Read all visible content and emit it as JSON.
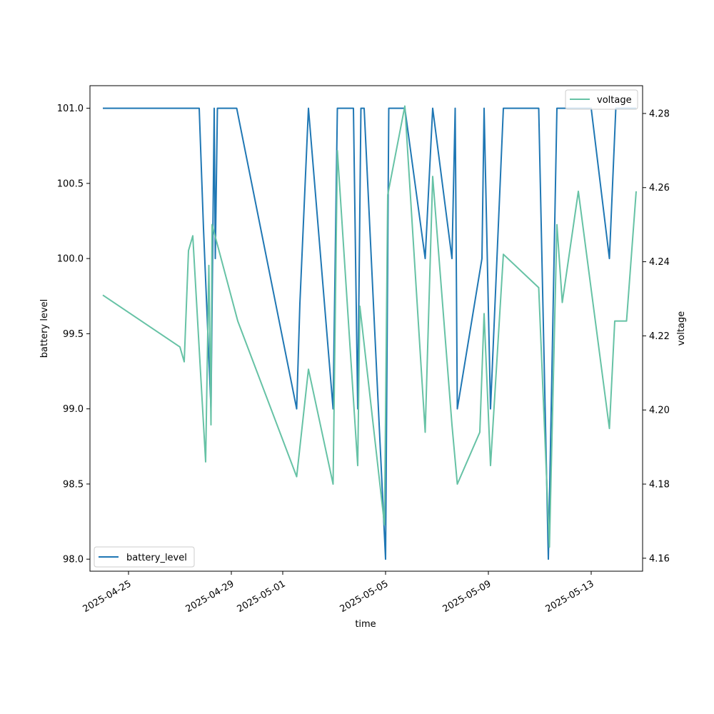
{
  "chart_data": {
    "type": "line",
    "title": "",
    "xlabel": "time",
    "ylabel_left": "battery level",
    "ylabel_right": "voltage",
    "x_ticks": [
      "2025-04-25",
      "2025-04-29",
      "2025-05-01",
      "2025-05-05",
      "2025-05-09",
      "2025-05-13"
    ],
    "y_left_ticks": [
      "98.0",
      "98.5",
      "99.0",
      "99.5",
      "100.0",
      "100.5",
      "101.0"
    ],
    "y_right_ticks": [
      "4.16",
      "4.18",
      "4.20",
      "4.22",
      "4.24",
      "4.26",
      "4.28"
    ],
    "y_left_lim": [
      97.92,
      101.15
    ],
    "y_right_lim": [
      4.1565,
      4.2875
    ],
    "x_lim": [
      "2025-04-23T12:00",
      "2025-05-15T00:00"
    ],
    "grid": false,
    "series": [
      {
        "name": "battery_level",
        "axis": "left",
        "color": "#1f77b4",
        "legend_position": "lower-left",
        "points": [
          [
            "2025-04-24T00:00",
            101.0
          ],
          [
            "2025-04-27T18:00",
            101.0
          ],
          [
            "2025-04-27T22:00",
            100.2
          ],
          [
            "2025-04-28T05:00",
            99.0
          ],
          [
            "2025-04-28T08:00",
            101.0
          ],
          [
            "2025-04-28T09:00",
            100.0
          ],
          [
            "2025-04-28T11:00",
            101.0
          ],
          [
            "2025-04-28T17:00",
            101.0
          ],
          [
            "2025-04-29T05:00",
            101.0
          ],
          [
            "2025-05-01T13:00",
            99.0
          ],
          [
            "2025-05-01T16:00",
            99.7
          ],
          [
            "2025-05-02T00:00",
            101.0
          ],
          [
            "2025-05-02T23:00",
            99.0
          ],
          [
            "2025-05-03T03:00",
            101.0
          ],
          [
            "2025-05-03T18:00",
            101.0
          ],
          [
            "2025-05-03T22:00",
            99.0
          ],
          [
            "2025-05-04T01:00",
            101.0
          ],
          [
            "2025-05-04T04:00",
            101.0
          ],
          [
            "2025-05-05T00:00",
            98.0
          ],
          [
            "2025-05-05T03:00",
            101.0
          ],
          [
            "2025-05-05T12:00",
            101.0
          ],
          [
            "2025-05-05T18:00",
            101.0
          ],
          [
            "2025-05-06T13:00",
            100.0
          ],
          [
            "2025-05-06T20:00",
            101.0
          ],
          [
            "2025-05-07T14:00",
            100.0
          ],
          [
            "2025-05-07T17:00",
            101.0
          ],
          [
            "2025-05-07T19:00",
            99.0
          ],
          [
            "2025-05-08T18:00",
            100.0
          ],
          [
            "2025-05-08T20:00",
            101.0
          ],
          [
            "2025-05-09T02:00",
            99.0
          ],
          [
            "2025-05-09T14:00",
            101.0
          ],
          [
            "2025-05-10T00:00",
            101.0
          ],
          [
            "2025-05-10T23:00",
            101.0
          ],
          [
            "2025-05-11T08:00",
            98.0
          ],
          [
            "2025-05-11T16:00",
            101.0
          ],
          [
            "2025-05-12T02:00",
            101.0
          ],
          [
            "2025-05-12T14:00",
            101.0
          ],
          [
            "2025-05-13T00:00",
            101.0
          ],
          [
            "2025-05-13T17:00",
            100.0
          ],
          [
            "2025-05-13T23:00",
            101.0
          ],
          [
            "2025-05-14T18:00",
            101.0
          ]
        ]
      },
      {
        "name": "voltage",
        "axis": "right",
        "color": "#66c2a5",
        "legend_position": "upper-right",
        "points": [
          [
            "2025-04-24T00:00",
            4.231
          ],
          [
            "2025-04-27T00:00",
            4.217
          ],
          [
            "2025-04-27T04:00",
            4.213
          ],
          [
            "2025-04-27T08:00",
            4.243
          ],
          [
            "2025-04-27T12:00",
            4.247
          ],
          [
            "2025-04-28T00:00",
            4.186
          ],
          [
            "2025-04-28T03:00",
            4.239
          ],
          [
            "2025-04-28T05:00",
            4.196
          ],
          [
            "2025-04-28T06:00",
            4.25
          ],
          [
            "2025-04-29T06:00",
            4.224
          ],
          [
            "2025-05-01T13:00",
            4.182
          ],
          [
            "2025-05-02T00:00",
            4.211
          ],
          [
            "2025-05-02T23:00",
            4.18
          ],
          [
            "2025-05-03T03:00",
            4.27
          ],
          [
            "2025-05-03T22:00",
            4.185
          ],
          [
            "2025-05-04T00:00",
            4.228
          ],
          [
            "2025-05-04T23:00",
            4.169
          ],
          [
            "2025-05-05T02:00",
            4.258
          ],
          [
            "2025-05-05T18:00",
            4.282
          ],
          [
            "2025-05-06T13:00",
            4.194
          ],
          [
            "2025-05-06T20:00",
            4.263
          ],
          [
            "2025-05-07T14:00",
            4.196
          ],
          [
            "2025-05-07T19:00",
            4.18
          ],
          [
            "2025-05-08T16:00",
            4.194
          ],
          [
            "2025-05-08T20:00",
            4.226
          ],
          [
            "2025-05-09T02:00",
            4.185
          ],
          [
            "2025-05-09T14:00",
            4.242
          ],
          [
            "2025-05-10T23:00",
            4.233
          ],
          [
            "2025-05-11T09:00",
            4.163
          ],
          [
            "2025-05-11T16:00",
            4.25
          ],
          [
            "2025-05-11T21:00",
            4.229
          ],
          [
            "2025-05-12T12:00",
            4.259
          ],
          [
            "2025-05-13T17:00",
            4.195
          ],
          [
            "2025-05-13T22:00",
            4.224
          ],
          [
            "2025-05-14T09:00",
            4.224
          ],
          [
            "2025-05-14T18:00",
            4.259
          ]
        ]
      }
    ]
  }
}
